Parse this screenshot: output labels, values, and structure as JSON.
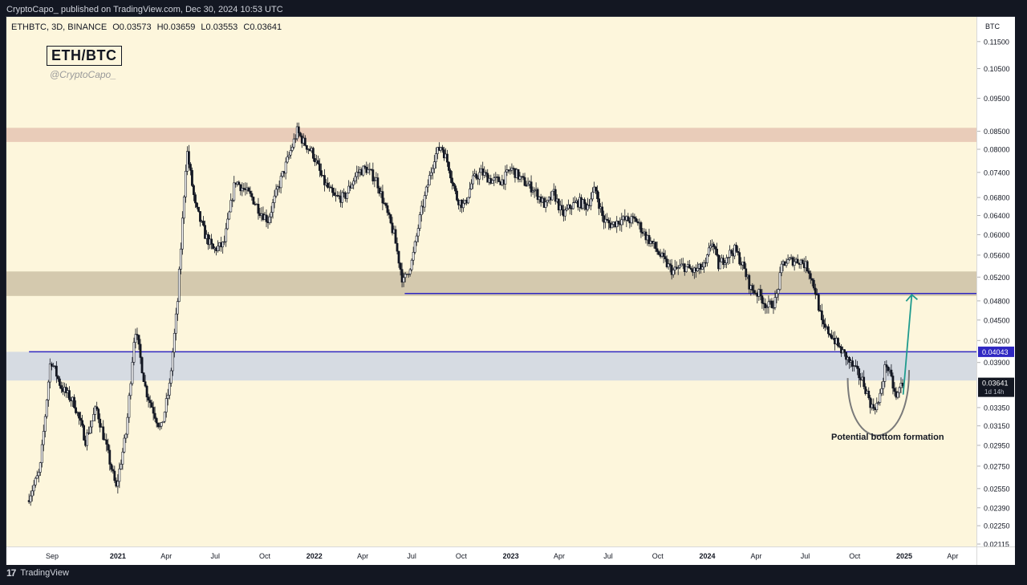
{
  "header": {
    "publisher_text": "CryptoCapo_ published on TradingView.com, Dec 30, 2024 10:53 UTC"
  },
  "symbol": {
    "name": "ETHBTC, 3D, BINANCE",
    "open": "O0.03573",
    "high": "H0.03659",
    "low": "L0.03553",
    "close": "C0.03641"
  },
  "overlay": {
    "pair_label": "ETH/BTC",
    "handle": "@CryptoCapo_",
    "bottom_annotation": "Potential bottom formation"
  },
  "price_axis": {
    "currency": "BTC"
  },
  "footer": {
    "brand": "TradingView",
    "logo_glyph": "17"
  },
  "colors": {
    "background": "#fdf6dc",
    "resistance_zone": "#e7c8b5",
    "mid_zone": "#cfc4a9",
    "support_zone": "#d2d8e2",
    "level_line": "#2f27c2",
    "target_arrow": "#1f9b8e",
    "current_price_tag": "#131722"
  },
  "chart_data": {
    "type": "candlestick",
    "title": "ETH/BTC",
    "scale": "log",
    "ylim": [
      0.02115,
      0.121
    ],
    "y_ticks": [
      "0.11500",
      "0.10500",
      "0.09500",
      "0.08500",
      "0.08000",
      "0.07400",
      "0.06800",
      "0.06400",
      "0.06000",
      "0.05600",
      "0.05200",
      "0.04800",
      "0.04500",
      "0.04200",
      "0.03900",
      "0.03350",
      "0.03150",
      "0.02950",
      "0.02750",
      "0.02550",
      "0.02390",
      "0.02250",
      "0.02115"
    ],
    "x_ticks": [
      {
        "label": "Sep",
        "date": "2020-09-01"
      },
      {
        "label": "2021",
        "date": "2021-01-01"
      },
      {
        "label": "Apr",
        "date": "2021-04-01"
      },
      {
        "label": "Jul",
        "date": "2021-07-01"
      },
      {
        "label": "Oct",
        "date": "2021-10-01"
      },
      {
        "label": "2022",
        "date": "2022-01-01"
      },
      {
        "label": "Apr",
        "date": "2022-04-01"
      },
      {
        "label": "Jul",
        "date": "2022-07-01"
      },
      {
        "label": "Oct",
        "date": "2022-10-01"
      },
      {
        "label": "2023",
        "date": "2023-01-01"
      },
      {
        "label": "Apr",
        "date": "2023-04-01"
      },
      {
        "label": "Jul",
        "date": "2023-07-01"
      },
      {
        "label": "Oct",
        "date": "2023-10-01"
      },
      {
        "label": "2024",
        "date": "2024-01-01"
      },
      {
        "label": "Apr",
        "date": "2024-04-01"
      },
      {
        "label": "Jul",
        "date": "2024-07-01"
      },
      {
        "label": "Oct",
        "date": "2024-10-01"
      },
      {
        "label": "2025",
        "date": "2025-01-01"
      },
      {
        "label": "Apr",
        "date": "2025-04-01"
      }
    ],
    "zones": [
      {
        "name": "resistance",
        "from": 0.082,
        "to": 0.086,
        "color": "#e7c8b5"
      },
      {
        "name": "mid",
        "from": 0.0488,
        "to": 0.053,
        "color": "#cfc4a9"
      },
      {
        "name": "support",
        "from": 0.0367,
        "to": 0.04043,
        "color": "#d2d8e2"
      }
    ],
    "levels": [
      {
        "price": 0.04043,
        "label": "0.04043",
        "start_date": "2020-07-20"
      },
      {
        "price": 0.0492,
        "start_date": "2022-06-18"
      }
    ],
    "current_price": {
      "value": "0.03641",
      "countdown": "1d 14h",
      "price": 0.03641
    },
    "target_arrow": {
      "from_date": "2024-12-30",
      "from_price": 0.035,
      "to_date": "2025-01-15",
      "to_price": 0.049
    },
    "bottom_arc": {
      "from_date": "2024-09-18",
      "to_date": "2025-01-10",
      "top_price": 0.037,
      "bottom_price": 0.0313
    },
    "key_points": [
      {
        "date": "2020-07-20",
        "price": 0.0245
      },
      {
        "date": "2020-08-12",
        "price": 0.027
      },
      {
        "date": "2020-09-01",
        "price": 0.0395
      },
      {
        "date": "2020-09-20",
        "price": 0.036
      },
      {
        "date": "2020-10-15",
        "price": 0.034
      },
      {
        "date": "2020-11-05",
        "price": 0.03
      },
      {
        "date": "2020-11-25",
        "price": 0.0335
      },
      {
        "date": "2020-12-15",
        "price": 0.029
      },
      {
        "date": "2021-01-01",
        "price": 0.0255
      },
      {
        "date": "2021-01-20",
        "price": 0.031
      },
      {
        "date": "2021-02-05",
        "price": 0.044
      },
      {
        "date": "2021-02-25",
        "price": 0.0355
      },
      {
        "date": "2021-03-25",
        "price": 0.031
      },
      {
        "date": "2021-04-10",
        "price": 0.036
      },
      {
        "date": "2021-04-25",
        "price": 0.048
      },
      {
        "date": "2021-05-12",
        "price": 0.08
      },
      {
        "date": "2021-05-28",
        "price": 0.066
      },
      {
        "date": "2021-06-15",
        "price": 0.06
      },
      {
        "date": "2021-06-30",
        "price": 0.057
      },
      {
        "date": "2021-07-20",
        "price": 0.058
      },
      {
        "date": "2021-08-10",
        "price": 0.072
      },
      {
        "date": "2021-08-25",
        "price": 0.07
      },
      {
        "date": "2021-09-10",
        "price": 0.068
      },
      {
        "date": "2021-09-25",
        "price": 0.065
      },
      {
        "date": "2021-10-10",
        "price": 0.063
      },
      {
        "date": "2021-10-28",
        "price": 0.07
      },
      {
        "date": "2021-11-15",
        "price": 0.077
      },
      {
        "date": "2021-12-03",
        "price": 0.085
      },
      {
        "date": "2021-12-15",
        "price": 0.082
      },
      {
        "date": "2022-01-01",
        "price": 0.079
      },
      {
        "date": "2022-01-20",
        "price": 0.072
      },
      {
        "date": "2022-02-10",
        "price": 0.068
      },
      {
        "date": "2022-03-01",
        "price": 0.068
      },
      {
        "date": "2022-03-25",
        "price": 0.074
      },
      {
        "date": "2022-04-10",
        "price": 0.075
      },
      {
        "date": "2022-04-30",
        "price": 0.072
      },
      {
        "date": "2022-05-15",
        "price": 0.066
      },
      {
        "date": "2022-06-01",
        "price": 0.06
      },
      {
        "date": "2022-06-18",
        "price": 0.051
      },
      {
        "date": "2022-07-05",
        "price": 0.055
      },
      {
        "date": "2022-07-20",
        "price": 0.064
      },
      {
        "date": "2022-08-01",
        "price": 0.07
      },
      {
        "date": "2022-08-15",
        "price": 0.078
      },
      {
        "date": "2022-08-28",
        "price": 0.081
      },
      {
        "date": "2022-09-10",
        "price": 0.076
      },
      {
        "date": "2022-09-25",
        "price": 0.068
      },
      {
        "date": "2022-10-10",
        "price": 0.066
      },
      {
        "date": "2022-10-25",
        "price": 0.072
      },
      {
        "date": "2022-11-10",
        "price": 0.074
      },
      {
        "date": "2022-11-30",
        "price": 0.072
      },
      {
        "date": "2022-12-20",
        "price": 0.072
      },
      {
        "date": "2023-01-05",
        "price": 0.075
      },
      {
        "date": "2023-01-25",
        "price": 0.072
      },
      {
        "date": "2023-02-15",
        "price": 0.07
      },
      {
        "date": "2023-03-10",
        "price": 0.066
      },
      {
        "date": "2023-03-25",
        "price": 0.069
      },
      {
        "date": "2023-04-10",
        "price": 0.064
      },
      {
        "date": "2023-04-25",
        "price": 0.066
      },
      {
        "date": "2023-05-10",
        "price": 0.067
      },
      {
        "date": "2023-05-25",
        "price": 0.066
      },
      {
        "date": "2023-06-10",
        "price": 0.07
      },
      {
        "date": "2023-06-25",
        "price": 0.063
      },
      {
        "date": "2023-07-10",
        "price": 0.062
      },
      {
        "date": "2023-07-25",
        "price": 0.063
      },
      {
        "date": "2023-08-10",
        "price": 0.063
      },
      {
        "date": "2023-08-25",
        "price": 0.063
      },
      {
        "date": "2023-09-10",
        "price": 0.06
      },
      {
        "date": "2023-09-25",
        "price": 0.058
      },
      {
        "date": "2023-10-15",
        "price": 0.055
      },
      {
        "date": "2023-11-01",
        "price": 0.053
      },
      {
        "date": "2023-11-20",
        "price": 0.054
      },
      {
        "date": "2023-12-10",
        "price": 0.053
      },
      {
        "date": "2024-01-01",
        "price": 0.054
      },
      {
        "date": "2024-01-12",
        "price": 0.059
      },
      {
        "date": "2024-01-25",
        "price": 0.054
      },
      {
        "date": "2024-02-10",
        "price": 0.056
      },
      {
        "date": "2024-02-25",
        "price": 0.057
      },
      {
        "date": "2024-03-10",
        "price": 0.054
      },
      {
        "date": "2024-03-25",
        "price": 0.05
      },
      {
        "date": "2024-04-10",
        "price": 0.049
      },
      {
        "date": "2024-04-25",
        "price": 0.047
      },
      {
        "date": "2024-05-10",
        "price": 0.048
      },
      {
        "date": "2024-05-23",
        "price": 0.0545
      },
      {
        "date": "2024-06-10",
        "price": 0.055
      },
      {
        "date": "2024-06-25",
        "price": 0.055
      },
      {
        "date": "2024-07-10",
        "price": 0.0535
      },
      {
        "date": "2024-07-25",
        "price": 0.049
      },
      {
        "date": "2024-08-05",
        "price": 0.044
      },
      {
        "date": "2024-08-20",
        "price": 0.043
      },
      {
        "date": "2024-09-05",
        "price": 0.041
      },
      {
        "date": "2024-09-20",
        "price": 0.0395
      },
      {
        "date": "2024-10-05",
        "price": 0.038
      },
      {
        "date": "2024-10-20",
        "price": 0.0365
      },
      {
        "date": "2024-11-05",
        "price": 0.0335
      },
      {
        "date": "2024-11-18",
        "price": 0.034
      },
      {
        "date": "2024-12-01",
        "price": 0.039
      },
      {
        "date": "2024-12-12",
        "price": 0.0365
      },
      {
        "date": "2024-12-20",
        "price": 0.0345
      },
      {
        "date": "2024-12-30",
        "price": 0.0364
      }
    ]
  }
}
